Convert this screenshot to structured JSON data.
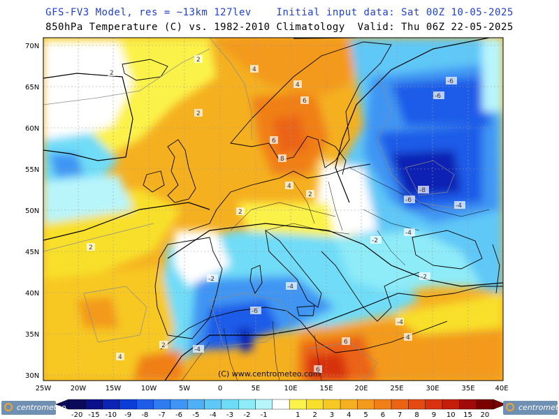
{
  "title_line1": "GFS-FV3 Model, res = ~13km 127lev    Initial input data: Sat 00Z 10-05-2025",
  "title_line2": "850hPa Temperature (C) vs. 1982-2010 Climatology  Valid: Thu 06Z 22-05-2025",
  "lat_labels": [
    "70N",
    "65N",
    "60N",
    "55N",
    "50N",
    "45N",
    "40N",
    "35N",
    "30N"
  ],
  "lon_labels": [
    "25W",
    "20W",
    "15W",
    "10W",
    "5W",
    "0",
    "5E",
    "10E",
    "15E",
    "20E",
    "25E",
    "30E",
    "35E",
    "40E"
  ],
  "contour_labels": [
    "2",
    "4",
    "4",
    "6",
    "8",
    "6",
    "2",
    "2",
    "4",
    "2",
    "2",
    "2",
    "2",
    "-2",
    "-4",
    "-6",
    "-6",
    "-4",
    "-6",
    "-8",
    "-6",
    "-4",
    "-4",
    "-2",
    "-2",
    "-2",
    "-4",
    "-6",
    "-6",
    "4",
    "2",
    "6",
    "4",
    "4"
  ],
  "copyright": "(C) www.centrometeo.com",
  "logo_text": "centrometeo",
  "colorbar": {
    "labels": [
      "-20",
      "-15",
      "-10",
      "-9",
      "-8",
      "-7",
      "-6",
      "-5",
      "-4",
      "-3",
      "-2",
      "-1",
      "",
      "1",
      "2",
      "3",
      "4",
      "5",
      "6",
      "7",
      "8",
      "9",
      "10",
      "15",
      "20"
    ],
    "colors": [
      "#0a0a5a",
      "#0b0f8a",
      "#0c24b4",
      "#0b3cd6",
      "#1e5ce8",
      "#2f7cf0",
      "#3f95f3",
      "#4fb0f5",
      "#5ec8f7",
      "#6fdcf7",
      "#8eebf8",
      "#b8f5fb",
      "#ffffff",
      "#fbf24a",
      "#f8e02a",
      "#f7c823",
      "#f5b020",
      "#f39a1c",
      "#f07f18",
      "#eb6414",
      "#e44a12",
      "#d8320f",
      "#c41e0b",
      "#a00a08",
      "#7a0000"
    ]
  },
  "legend": {
    "unit": "C",
    "field": "850hPa Temperature anomaly"
  }
}
